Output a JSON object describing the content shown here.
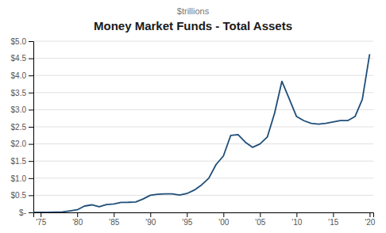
{
  "chart_data": {
    "type": "line",
    "title": "Money Market Funds - Total Assets",
    "subtitle": "$trillions",
    "x": [
      1974,
      1975,
      1976,
      1977,
      1978,
      1979,
      1980,
      1981,
      1982,
      1983,
      1984,
      1985,
      1986,
      1987,
      1988,
      1989,
      1990,
      1991,
      1992,
      1993,
      1994,
      1995,
      1996,
      1997,
      1998,
      1999,
      2000,
      2001,
      2002,
      2003,
      2004,
      2005,
      2006,
      2007,
      2008,
      2009,
      2010,
      2011,
      2012,
      2013,
      2014,
      2015,
      2016,
      2017,
      2018,
      2019,
      2020
    ],
    "values": [
      0.003,
      0.004,
      0.005,
      0.008,
      0.015,
      0.045,
      0.076,
      0.185,
      0.22,
      0.165,
      0.23,
      0.245,
      0.29,
      0.295,
      0.305,
      0.39,
      0.5,
      0.53,
      0.54,
      0.54,
      0.505,
      0.55,
      0.65,
      0.8,
      1.0,
      1.4,
      1.65,
      2.25,
      2.27,
      2.05,
      1.9,
      2.0,
      2.2,
      2.9,
      3.83,
      3.32,
      2.8,
      2.68,
      2.6,
      2.58,
      2.6,
      2.64,
      2.68,
      2.68,
      2.8,
      3.3,
      4.62
    ],
    "color": "#1f4e79",
    "xlim": [
      1974,
      2020.5
    ],
    "ylim": [
      0,
      5.0
    ],
    "xticks": [
      {
        "value": 1975,
        "label": "'75"
      },
      {
        "value": 1980,
        "label": "'80"
      },
      {
        "value": 1985,
        "label": "'85"
      },
      {
        "value": 1990,
        "label": "'90"
      },
      {
        "value": 1995,
        "label": "'95"
      },
      {
        "value": 2000,
        "label": "'00"
      },
      {
        "value": 2005,
        "label": "'05"
      },
      {
        "value": 2010,
        "label": "'10"
      },
      {
        "value": 2015,
        "label": "'15"
      },
      {
        "value": 2020,
        "label": "'20"
      }
    ],
    "yticks": [
      {
        "value": 0,
        "label": "$-"
      },
      {
        "value": 0.5,
        "label": "$0.5"
      },
      {
        "value": 1.0,
        "label": "$1.0"
      },
      {
        "value": 1.5,
        "label": "$1.5"
      },
      {
        "value": 2.0,
        "label": "$2.0"
      },
      {
        "value": 2.5,
        "label": "$2.5"
      },
      {
        "value": 3.0,
        "label": "$3.0"
      },
      {
        "value": 3.5,
        "label": "$3.5"
      },
      {
        "value": 4.0,
        "label": "$4.0"
      },
      {
        "value": 4.5,
        "label": "$4.5"
      },
      {
        "value": 5.0,
        "label": "$5.0"
      }
    ],
    "grid": true
  }
}
